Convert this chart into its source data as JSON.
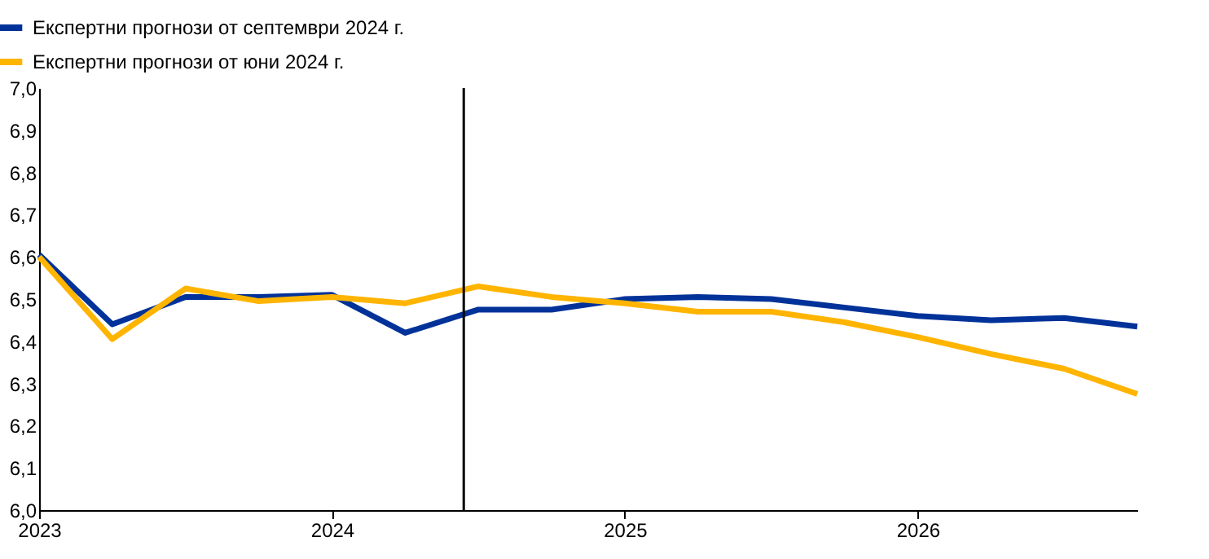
{
  "chart_data": {
    "type": "line",
    "x": [
      2023,
      2023.25,
      2023.5,
      2023.75,
      2024,
      2024.25,
      2024.5,
      2024.75,
      2025,
      2025.25,
      2025.5,
      2025.75,
      2026,
      2026.25,
      2026.5,
      2026.75
    ],
    "series": [
      {
        "name": "Експертни прогнози от септември 2024 г.",
        "color": "#003299",
        "values": [
          6.605,
          6.44,
          6.505,
          6.505,
          6.51,
          6.42,
          6.475,
          6.475,
          6.5,
          6.505,
          6.5,
          6.48,
          6.46,
          6.45,
          6.455,
          6.435
        ]
      },
      {
        "name": "Експертни прогнози от юни 2024 г.",
        "color": "#ffb400",
        "values": [
          6.6,
          6.405,
          6.525,
          6.495,
          6.505,
          6.49,
          6.53,
          6.505,
          6.49,
          6.47,
          6.47,
          6.445,
          6.41,
          6.37,
          6.335,
          6.275
        ]
      }
    ],
    "xlim": [
      2023,
      2026.75
    ],
    "xticks": [
      2023,
      2024,
      2025,
      2026
    ],
    "ylim": [
      6.0,
      7.0
    ],
    "yticks": [
      {
        "value": 6.0,
        "label": "6,0"
      },
      {
        "value": 6.1,
        "label": "6,1"
      },
      {
        "value": 6.2,
        "label": "6,2"
      },
      {
        "value": 6.3,
        "label": "6,3"
      },
      {
        "value": 6.4,
        "label": "6,4"
      },
      {
        "value": 6.5,
        "label": "6,5"
      },
      {
        "value": 6.6,
        "label": "6,6"
      },
      {
        "value": 6.7,
        "label": "6,7"
      },
      {
        "value": 6.8,
        "label": "6,8"
      },
      {
        "value": 6.9,
        "label": "6,9"
      },
      {
        "value": 7.0,
        "label": "7,0"
      }
    ],
    "ref_lines": [
      {
        "axis": "x",
        "value": 2024.45,
        "color": "#000000"
      }
    ],
    "grid": false,
    "legend": "top left",
    "marker": "none",
    "line_style": "solid"
  }
}
